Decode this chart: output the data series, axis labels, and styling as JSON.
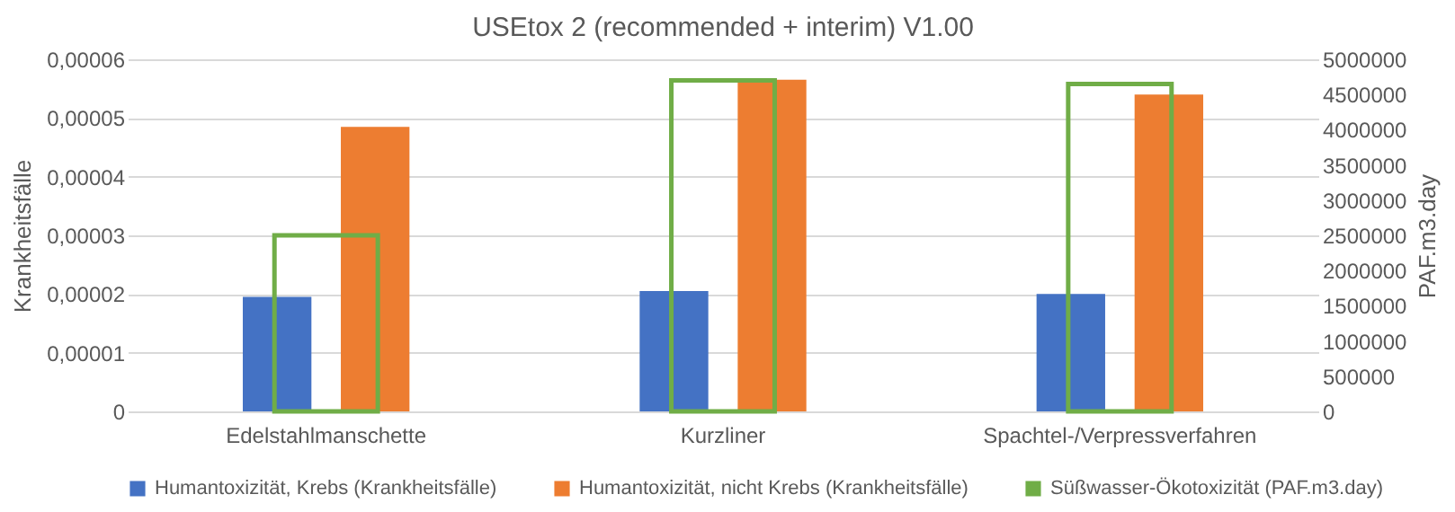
{
  "chart_data": {
    "type": "bar",
    "title": "USEtox 2 (recommended + interim) V1.00",
    "categories": [
      "Edelstahlmanschette",
      "Kurzliner",
      "Spachtel-/Verpressverfahren"
    ],
    "ylabel": "Krankheitsfälle",
    "y2label": "PAF.m3.day",
    "series": [
      {
        "name": "Humantoxizität, Krebs (Krankheitsfälle)",
        "color": "#4472c4",
        "values": [
          1.95e-05,
          2.05e-05,
          2e-05
        ]
      },
      {
        "name": "Humantoxizität, nicht Krebs (Krankheitsfälle)",
        "color": "#ed7d31",
        "values": [
          4.85e-05,
          5.65e-05,
          5.4e-05
        ]
      },
      {
        "name": "Süßwasser-Ökotoxizität (PAF.m3.day)",
        "color": "#70ad47",
        "axis": "y2",
        "values": [
          2500000,
          4700000,
          4650000
        ]
      }
    ],
    "ylim": [
      0,
      6e-05
    ],
    "yticks": [
      0,
      {
        "value": 1e-05,
        "label": "0,00001"
      },
      {
        "value": 2e-05,
        "label": "0,00002"
      },
      {
        "value": 3e-05,
        "label": "0,00003"
      },
      {
        "value": 4e-05,
        "label": "0,00004"
      },
      {
        "value": 5e-05,
        "label": "0,00005"
      },
      {
        "value": 6e-05,
        "label": "0,00006"
      }
    ],
    "y2lim": [
      0,
      5000000
    ],
    "y2ticks": [
      0,
      500000,
      1000000,
      1500000,
      2000000,
      2500000,
      3000000,
      3500000,
      4000000,
      4500000,
      5000000
    ],
    "grid": "y",
    "legend": "bottom"
  }
}
